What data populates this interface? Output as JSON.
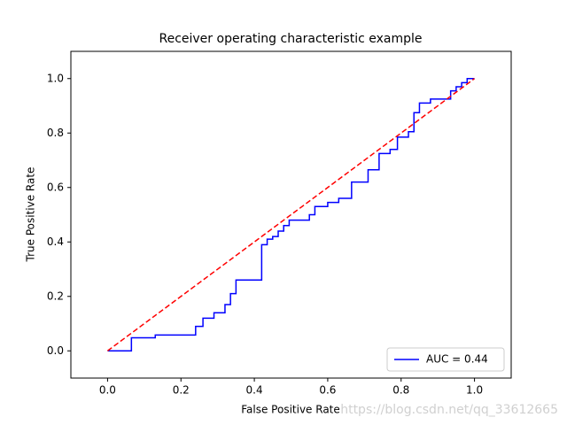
{
  "chart_data": {
    "type": "line",
    "title": "Receiver operating characteristic example",
    "x_label": "False Positive Rate",
    "y_label": "True Positive Rate",
    "xlim": [
      -0.1,
      1.1
    ],
    "ylim": [
      -0.1,
      1.1
    ],
    "xticks": [
      {
        "value": 0,
        "label": "0.0"
      },
      0.2,
      0.4,
      0.6,
      0.8,
      {
        "value": 1,
        "label": "1.0"
      }
    ],
    "yticks": [
      {
        "value": 0,
        "label": "0.0"
      },
      0.2,
      0.4,
      0.6,
      0.8,
      {
        "value": 1,
        "label": "1.0"
      }
    ],
    "legend": "lower right",
    "series": [
      {
        "name": "AUC = 0.44",
        "color": "#0000ff",
        "dash": "solid",
        "x": [
          0,
          0.065,
          0.065,
          0.13,
          0.13,
          0.24,
          0.24,
          0.26,
          0.26,
          0.29,
          0.29,
          0.32,
          0.32,
          0.335,
          0.335,
          0.35,
          0.35,
          0.42,
          0.42,
          0.435,
          0.435,
          0.45,
          0.45,
          0.465,
          0.465,
          0.48,
          0.48,
          0.495,
          0.495,
          0.55,
          0.55,
          0.565,
          0.565,
          0.6,
          0.6,
          0.63,
          0.63,
          0.665,
          0.665,
          0.71,
          0.71,
          0.74,
          0.74,
          0.77,
          0.77,
          0.79,
          0.79,
          0.82,
          0.82,
          0.835,
          0.835,
          0.85,
          0.85,
          0.88,
          0.88,
          0.935,
          0.935,
          0.95,
          0.95,
          0.965,
          0.965,
          0.98,
          0.98,
          1
        ],
        "values": [
          0,
          0,
          0.048,
          0.048,
          0.058,
          0.058,
          0.09,
          0.09,
          0.12,
          0.12,
          0.14,
          0.14,
          0.17,
          0.17,
          0.21,
          0.21,
          0.26,
          0.26,
          0.39,
          0.39,
          0.41,
          0.41,
          0.42,
          0.42,
          0.44,
          0.44,
          0.46,
          0.46,
          0.48,
          0.48,
          0.5,
          0.5,
          0.53,
          0.53,
          0.545,
          0.545,
          0.56,
          0.56,
          0.62,
          0.62,
          0.665,
          0.665,
          0.725,
          0.725,
          0.74,
          0.74,
          0.785,
          0.785,
          0.805,
          0.805,
          0.875,
          0.875,
          0.91,
          0.91,
          0.925,
          0.925,
          0.955,
          0.955,
          0.97,
          0.97,
          0.985,
          0.985,
          1,
          1
        ]
      },
      {
        "color": "#ff0000",
        "dash": "dashed",
        "x": [
          0,
          1
        ],
        "values": [
          0,
          1
        ]
      }
    ],
    "watermark": "https://blog.csdn.net/qq_33612665"
  }
}
